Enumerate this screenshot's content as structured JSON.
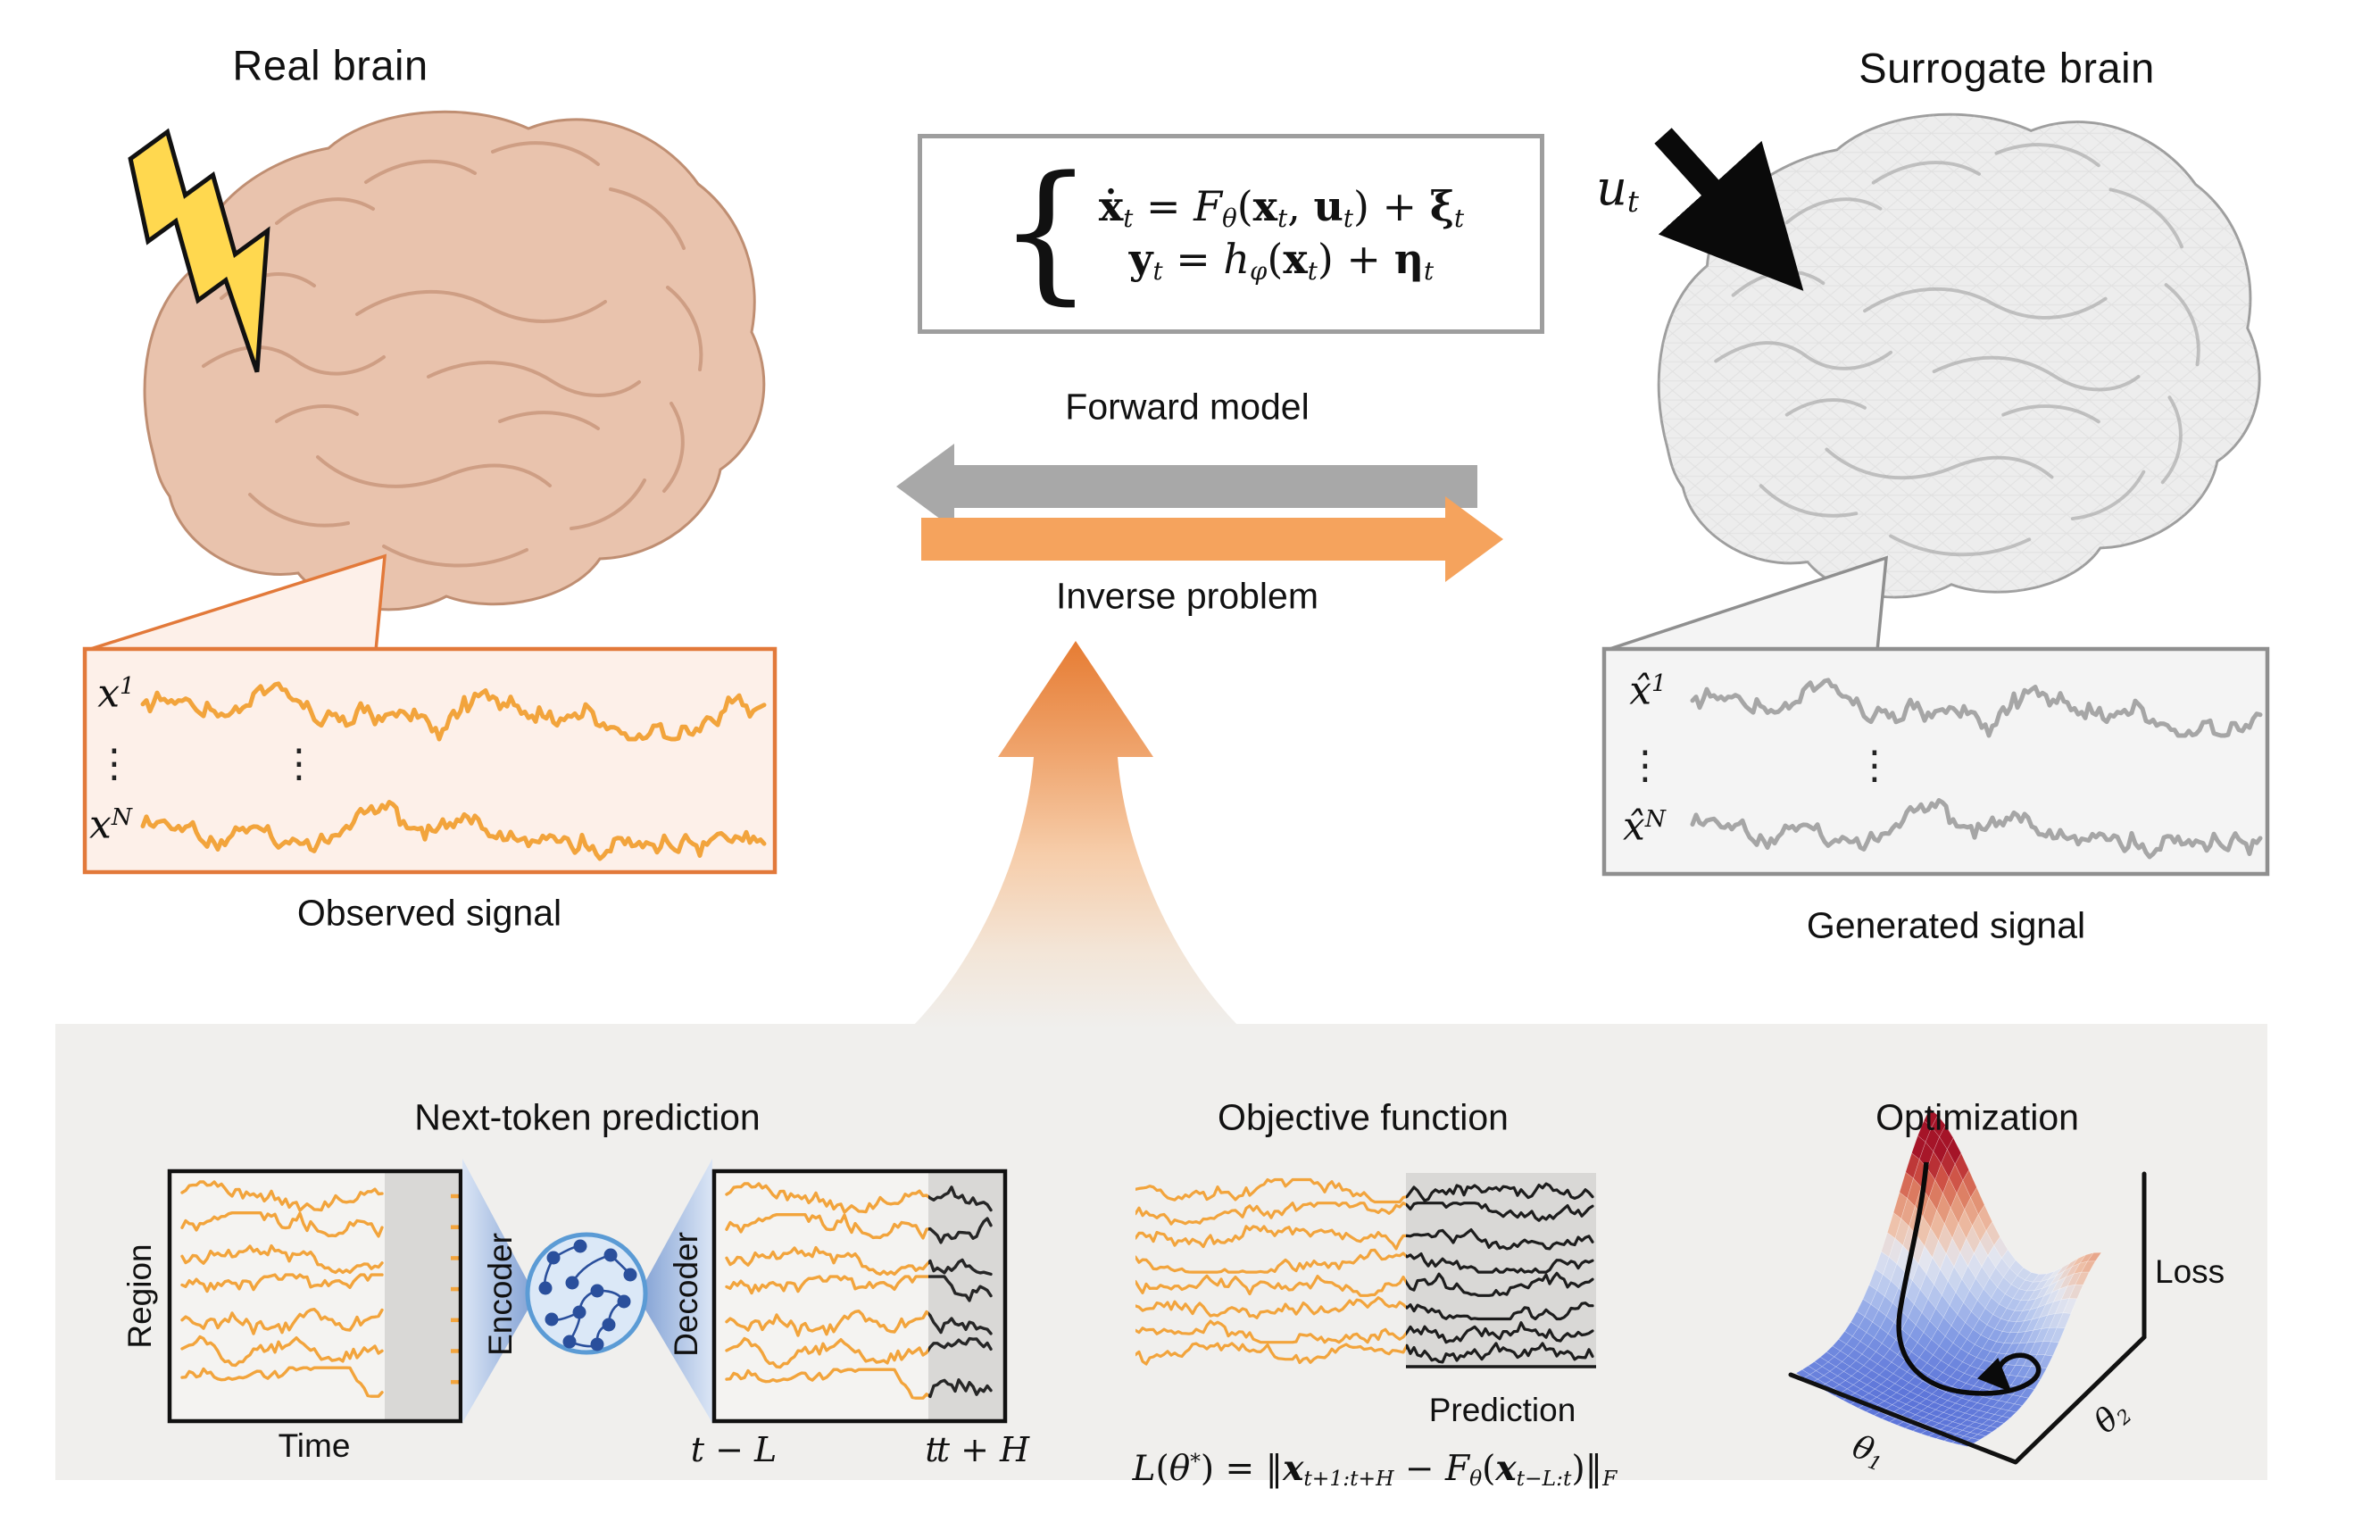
{
  "titles": {
    "real_brain": "Real brain",
    "surrogate_brain": "Surrogate brain",
    "forward_model": "Forward model",
    "inverse_problem": "Inverse problem",
    "observed_signal": "Observed signal",
    "generated_signal": "Generated signal",
    "next_token": "Next-token prediction",
    "objective": "Objective function",
    "optimization": "Optimization"
  },
  "equations": {
    "brace": "{",
    "state_line1": [
      {
        "t": "ẋ",
        "s": "b"
      },
      {
        "t": "t",
        "s": "subi"
      },
      {
        "t": " = ",
        "s": "n"
      },
      {
        "t": "F",
        "s": "i"
      },
      {
        "t": "θ",
        "s": "subi"
      },
      {
        "t": "(",
        "s": "n"
      },
      {
        "t": "x",
        "s": "b"
      },
      {
        "t": "t",
        "s": "subi"
      },
      {
        "t": ", ",
        "s": "n"
      },
      {
        "t": "u",
        "s": "b"
      },
      {
        "t": "t",
        "s": "subi"
      },
      {
        "t": ") + ",
        "s": "n"
      },
      {
        "t": "ξ",
        "s": "b"
      },
      {
        "t": "t",
        "s": "subi"
      }
    ],
    "state_line2": [
      {
        "t": "y",
        "s": "b"
      },
      {
        "t": "t",
        "s": "subi"
      },
      {
        "t": " = ",
        "s": "n"
      },
      {
        "t": "h",
        "s": "i"
      },
      {
        "t": "φ",
        "s": "subi"
      },
      {
        "t": "(",
        "s": "n"
      },
      {
        "t": "x",
        "s": "b"
      },
      {
        "t": "t",
        "s": "subi"
      },
      {
        "t": ") + ",
        "s": "n"
      },
      {
        "t": "η",
        "s": "b"
      },
      {
        "t": "t",
        "s": "subi"
      }
    ],
    "loss": [
      {
        "t": "L",
        "s": "i"
      },
      {
        "t": "(",
        "s": "n"
      },
      {
        "t": "θ",
        "s": "i"
      },
      {
        "t": "*",
        "s": "sup"
      },
      {
        "t": ") = ‖",
        "s": "n"
      },
      {
        "t": "x",
        "s": "bi"
      },
      {
        "t": "t+1:t+H",
        "s": "subi"
      },
      {
        "t": " − ",
        "s": "n"
      },
      {
        "t": "F",
        "s": "i"
      },
      {
        "t": "θ",
        "s": "subi"
      },
      {
        "t": "(",
        "s": "n"
      },
      {
        "t": "x",
        "s": "bi"
      },
      {
        "t": "t−L:t",
        "s": "subi"
      },
      {
        "t": ")‖",
        "s": "n"
      },
      {
        "t": "F",
        "s": "subi"
      }
    ]
  },
  "labels": {
    "u_t": [
      {
        "t": "u",
        "s": "i"
      },
      {
        "t": "t",
        "s": "subi"
      }
    ],
    "x1": [
      {
        "t": "x",
        "s": "i"
      },
      {
        "t": "1",
        "s": "sup"
      }
    ],
    "xN": [
      {
        "t": "x",
        "s": "i"
      },
      {
        "t": "N",
        "s": "supi"
      }
    ],
    "xhat1": [
      {
        "t": "x̂",
        "s": "i"
      },
      {
        "t": "1",
        "s": "sup"
      }
    ],
    "xhatN": [
      {
        "t": "x̂",
        "s": "i"
      },
      {
        "t": "N",
        "s": "supi"
      }
    ],
    "theta1": [
      {
        "t": "θ",
        "s": "i"
      },
      {
        "t": "1",
        "s": "subi"
      }
    ],
    "theta2": [
      {
        "t": "θ",
        "s": "i"
      },
      {
        "t": "2",
        "s": "subi"
      }
    ],
    "dots": "⋮",
    "region": "Region",
    "time": "Time",
    "encoder": "Encoder",
    "decoder": "Decoder",
    "t_minus_L": "t − L",
    "t": "t",
    "t_plus_H": "t + H",
    "prediction": "Prediction",
    "loss_axis": "Loss"
  },
  "signals": {
    "observed": {
      "trace_count": 2,
      "color": "#F2A43C"
    },
    "generated": {
      "trace_count": 2,
      "color": "#A6A6A6"
    },
    "encoder_input": {
      "trace_count": 7,
      "color": "#F2A43C"
    },
    "decoder_output": {
      "trace_count": 7,
      "past_color": "#F2A43C",
      "future_color": "#262626"
    },
    "objective": {
      "trace_count": 8,
      "past_color": "#F2A43C",
      "future_color": "#1d1d1d"
    }
  },
  "colors": {
    "panel": "#f0efed",
    "forward_arrow": "#a8a8a8",
    "inverse_arrow": "#f5a35d",
    "up_arrow_top": "#e67c33",
    "observed_box_fill": "#fdf0e9",
    "observed_box_border": "#e2793a",
    "generated_box_fill": "#f4f4f4",
    "generated_box_border": "#8f8f8f",
    "prediction_shade": "#d9d8d6",
    "eq_box_border": "#9e9e9e",
    "brain_real_fill": "#e9c3ad",
    "brain_real_line": "#c08b6e",
    "brain_surrogate_fill": "#ededed",
    "brain_surrogate_line": "#a6a6a6",
    "lightning_fill": "#ffd84f",
    "funnel_dark": "#7f9fd3",
    "funnel_light": "#dde7f6",
    "network_circle_fill": "#dbe8f7",
    "network_circle_border": "#5b9bd5",
    "network_node": "#2a4f9c",
    "loss_surface_low": "#5b73d8",
    "loss_surface_high": "#a51428"
  }
}
